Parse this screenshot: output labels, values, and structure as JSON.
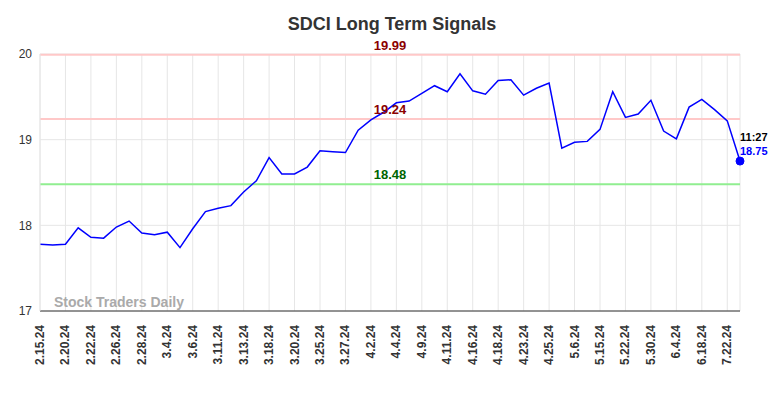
{
  "chart_data": {
    "type": "line",
    "title": "SDCI Long Term Signals",
    "categories": [
      "2.15.24",
      null,
      "2.20.24",
      null,
      "2.22.24",
      null,
      "2.26.24",
      null,
      "2.28.24",
      null,
      "3.4.24",
      null,
      "3.6.24",
      null,
      "3.11.24",
      null,
      "3.13.24",
      null,
      "3.18.24",
      null,
      "3.20.24",
      null,
      "3.25.24",
      null,
      "3.27.24",
      null,
      "4.2.24",
      null,
      "4.4.24",
      null,
      "4.9.24",
      null,
      "4.11.24",
      null,
      "4.16.24",
      null,
      "4.18.24",
      null,
      "4.23.24",
      null,
      "4.25.24",
      null,
      "5.6.24",
      null,
      "5.15.24",
      null,
      "5.22.24",
      null,
      "5.30.24",
      null,
      "6.4.24",
      null,
      "6.18.24",
      null,
      "7.22.24",
      null
    ],
    "values": [
      17.78,
      17.77,
      17.78,
      17.97,
      17.86,
      17.85,
      17.98,
      18.05,
      17.91,
      17.89,
      17.92,
      17.74,
      17.96,
      18.16,
      18.2,
      18.23,
      18.39,
      18.52,
      18.79,
      18.6,
      18.6,
      18.68,
      18.87,
      18.86,
      18.85,
      19.11,
      19.23,
      19.32,
      19.43,
      19.45,
      19.54,
      19.63,
      19.56,
      19.77,
      19.57,
      19.53,
      19.69,
      19.7,
      19.52,
      19.6,
      19.66,
      18.9,
      18.97,
      18.98,
      19.12,
      19.56,
      19.26,
      19.3,
      19.46,
      19.1,
      19.01,
      19.38,
      19.47,
      19.35,
      19.22,
      18.75
    ],
    "color": "#0000ff",
    "ylim": [
      17,
      20
    ],
    "yticks": [
      17,
      18,
      19,
      20
    ],
    "grid": true,
    "reference_lines": [
      {
        "value": 19.99,
        "color": "#ffc8c8"
      },
      {
        "value": 19.24,
        "color": "#ffc8c8"
      },
      {
        "value": 18.48,
        "color": "#90ee90"
      }
    ],
    "annotations": [
      "11:27"
    ],
    "watermark": "Stock Traders Daily"
  }
}
